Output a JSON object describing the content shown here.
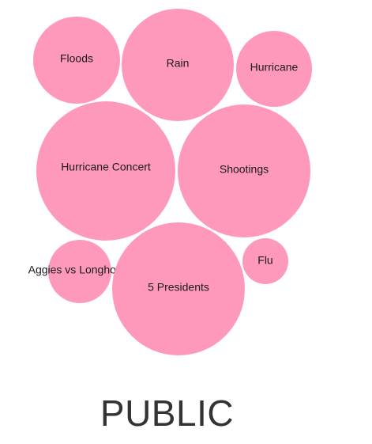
{
  "chart_data": {
    "type": "bubble",
    "title": "PUBLIC",
    "bubble_color": "#ff99bb",
    "items": [
      {
        "label": "Floods"
      },
      {
        "label": "Rain"
      },
      {
        "label": "Hurricane"
      },
      {
        "label": "Hurricane Concert"
      },
      {
        "label": "Shootings"
      },
      {
        "label": "Aggies vs Longhorns"
      },
      {
        "label": "5 Presidents"
      },
      {
        "label": "Flu"
      }
    ]
  }
}
